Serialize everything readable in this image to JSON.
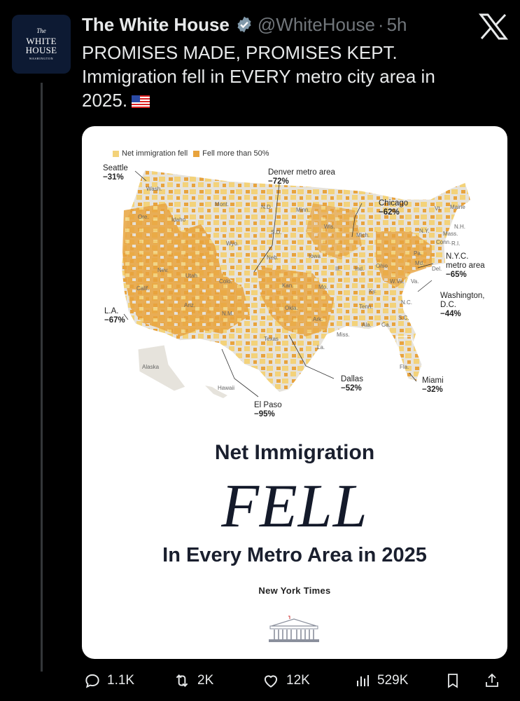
{
  "account": {
    "avatar_the": "The",
    "avatar_white": "WHITE",
    "avatar_house": "HOUSE",
    "avatar_washington": "WASHINGTON",
    "name": "The White House",
    "handle": "@WhiteHouse",
    "separator": "·",
    "time": "5h"
  },
  "tweet": {
    "line1": "PROMISES MADE, PROMISES KEPT.",
    "line2": "Immigration fell in EVERY metro city area in",
    "line3": "2025.",
    "flag": "us-flag-emoji"
  },
  "card": {
    "legend": {
      "fell": "Net immigration fell",
      "fell_more": "Fell more than 50%",
      "fell_color": "#f3d27a",
      "fell_more_color": "#e8a33d"
    },
    "metros": [
      {
        "name": "Seattle",
        "value": "−31%"
      },
      {
        "name": "Denver metro area",
        "value": "−72%"
      },
      {
        "name": "Chicago",
        "value": "−62%"
      },
      {
        "name": "N.Y.C.",
        "name2": "metro area",
        "value": "−65%"
      },
      {
        "name": "Washington,",
        "name2": "D.C.",
        "value": "−44%"
      },
      {
        "name": "L.A.",
        "value": "−67%"
      },
      {
        "name": "Dallas",
        "value": "−52%"
      },
      {
        "name": "Miami",
        "value": "−32%"
      },
      {
        "name": "El Paso",
        "value": "−95%"
      }
    ],
    "state_labels": [
      "Wash.",
      "Ore.",
      "Idaho",
      "Mont.",
      "N.D.",
      "Minn.",
      "Wis.",
      "Mich.",
      "S.D.",
      "Wyo.",
      "Neb.",
      "Iowa",
      "Ill.",
      "Ind.",
      "Ohio",
      "Pa.",
      "N.Y.",
      "Vt.",
      "Maine",
      "N.H.",
      "Mass.",
      "Conn.",
      "R.I.",
      "Del.",
      "Md.",
      "Va.",
      "W.Va.",
      "Ky.",
      "Tenn.",
      "N.C.",
      "S.C.",
      "Ga.",
      "Ala.",
      "Miss.",
      "La.",
      "Ark.",
      "Mo.",
      "Kan.",
      "Okla.",
      "Texas",
      "N.M.",
      "Colo.",
      "Utah",
      "Nev.",
      "Calif.",
      "Ariz.",
      "Fla.",
      "Alaska",
      "Hawaii"
    ],
    "headline_top": "Net Immigration",
    "headline_main": "FELL",
    "headline_bottom": "In Every Metro Area in 2025",
    "source": "New York Times"
  },
  "actions": {
    "replies": "1.1K",
    "reposts": "2K",
    "likes": "12K",
    "views": "529K"
  }
}
